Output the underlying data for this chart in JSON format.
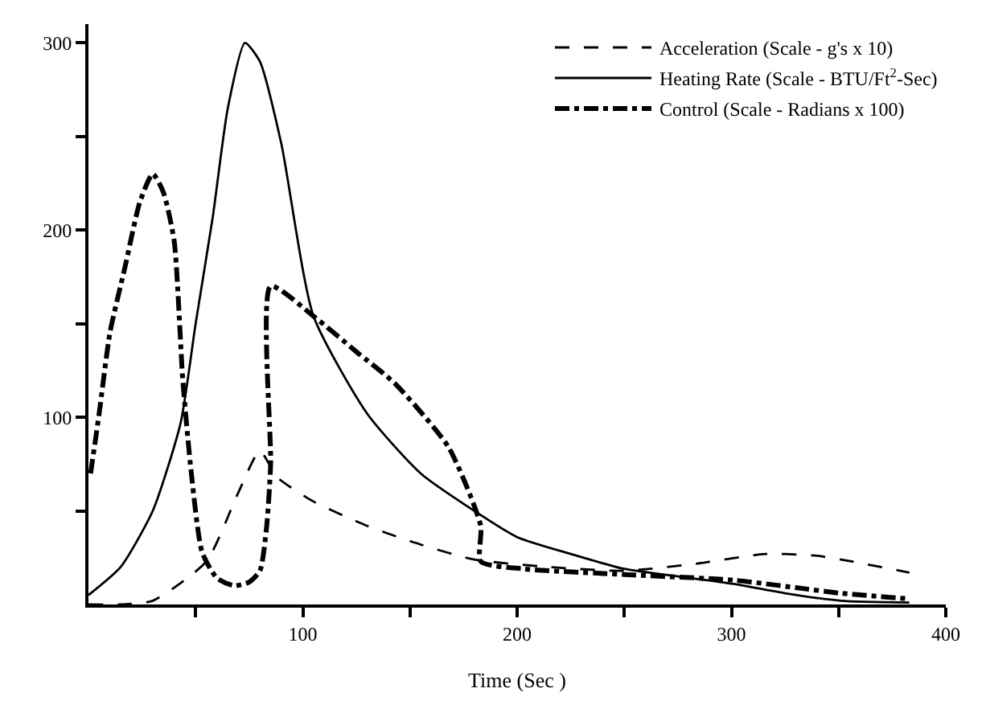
{
  "chart_data": {
    "type": "line",
    "xlabel": "Time (Sec )",
    "xlim": [
      0,
      400
    ],
    "ylim": [
      0,
      310
    ],
    "xticks": [
      {
        "value": 50,
        "label": null
      },
      100,
      {
        "value": 150,
        "label": null
      },
      200,
      {
        "value": 250,
        "label": null
      },
      300,
      {
        "value": 350,
        "label": null
      },
      400
    ],
    "yticks": [
      {
        "value": 50,
        "label": null
      },
      100,
      {
        "value": 150,
        "label": null
      },
      200,
      {
        "value": 250,
        "label": null
      },
      300
    ],
    "legend": "top right",
    "marker": "none",
    "series": [
      {
        "name": "Acceleration (Scale - g's x 10)",
        "color": "#000000",
        "line_style": "dashed",
        "x": [
          0,
          15,
          30,
          55,
          70,
          80,
          88,
          105,
          130,
          155,
          180,
          215,
          250,
          285,
          316,
          340,
          356,
          383
        ],
        "values": [
          0,
          0,
          2,
          23,
          60,
          82,
          68,
          55,
          42,
          32,
          24,
          20,
          18,
          22,
          27,
          26,
          23,
          17
        ]
      },
      {
        "name": "Heating Rate (Scale - BTU/Ft$^{2}$-Sec)",
        "color": "#000000",
        "line_style": "solid",
        "x": [
          0,
          15,
          30,
          43,
          50,
          58,
          65,
          73,
          80,
          90,
          105,
          130,
          155,
          180,
          200,
          225,
          250,
          275,
          301,
          325,
          351,
          383
        ],
        "values": [
          5,
          20,
          50,
          97,
          150,
          207,
          265,
          300,
          290,
          246,
          154,
          102,
          70,
          50,
          36,
          27,
          19,
          15,
          11,
          6,
          2,
          1
        ]
      },
      {
        "name": "Control (Scale - Radians x 100)",
        "color": "#000000",
        "line_style": "dashdot",
        "x": [
          1,
          5,
          10,
          17,
          24,
          30,
          35,
          40,
          44,
          48,
          53,
          60,
          68,
          75,
          80,
          83,
          85,
          85,
          105,
          125,
          143,
          168,
          183,
          183,
          203,
          250,
          301,
          330,
          351,
          383
        ],
        "values": [
          70,
          102,
          145,
          180,
          215,
          230,
          220,
          194,
          120,
          70,
          28,
          14,
          10,
          12,
          18,
          40,
          75,
          170,
          154,
          135,
          118,
          84,
          42,
          23,
          19,
          16,
          13,
          9,
          6,
          3
        ]
      }
    ]
  }
}
